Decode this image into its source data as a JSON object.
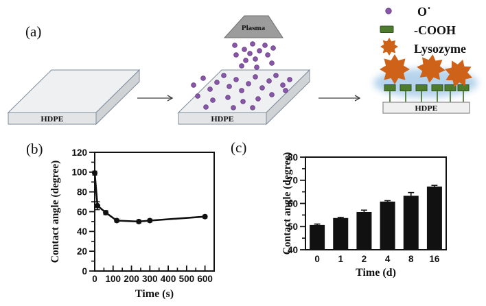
{
  "figure": {
    "panel_a": {
      "label": "(a)",
      "substrate_label": "HDPE",
      "plasma_label": "Plasma",
      "legend": [
        {
          "icon": "oxygen-radical-icon",
          "label": "O˙"
        },
        {
          "icon": "cooh-icon",
          "label": "-COOH"
        },
        {
          "icon": "lysozyme-icon",
          "label": "Lysozyme"
        }
      ]
    },
    "panel_b": {
      "label": "(b)"
    },
    "panel_c": {
      "label": "(c)"
    }
  },
  "theme": {
    "radical_purple": "#8a56a8",
    "radical_purple_dark": "#5e3a80",
    "cooh_green": "#4e7c2e",
    "cooh_green_dark": "#2e5318",
    "lysozyme_orange": "#cd6218",
    "haze_blue": "#a9cce9",
    "plasma_gray": "#9c9c9c",
    "slab_top": "#eef0f1",
    "slab_front": "#e2e4e6",
    "slab_side": "#cfd3d6",
    "slab_stroke": "#7d8b9b",
    "chart_black": "#111111"
  },
  "chart_data": [
    {
      "id": "panel_b",
      "type": "line",
      "x": [
        0,
        15,
        60,
        120,
        240,
        300,
        600
      ],
      "y": [
        99,
        66,
        59,
        51,
        50,
        51,
        55
      ],
      "yerr": [
        2,
        4,
        2,
        1.5,
        1.5,
        1.5,
        1.5
      ],
      "xlabel": "Time (s)",
      "ylabel": "Contact angle (degree)",
      "xlim": [
        0,
        650
      ],
      "ylim": [
        0,
        120
      ],
      "xticks": [
        0,
        100,
        200,
        300,
        400,
        500,
        600
      ],
      "yticks": [
        0,
        20,
        40,
        60,
        80,
        100,
        120
      ],
      "x_minor_step": 50,
      "y_minor_step": 10,
      "grid": false,
      "frame": true,
      "color": "#111111"
    },
    {
      "id": "panel_c",
      "type": "bar",
      "categories": [
        "0",
        "1",
        "2",
        "4",
        "8",
        "16"
      ],
      "values": [
        50.7,
        53.7,
        56.3,
        60.8,
        63.3,
        67.3
      ],
      "errors": [
        0.4,
        0.3,
        0.8,
        0.4,
        1.4,
        0.5
      ],
      "xlabel": "Time (d)",
      "ylabel": "Contact angle (degree)",
      "ylim": [
        40,
        80
      ],
      "yticks": [
        40,
        50,
        60,
        70,
        80
      ],
      "y_minor_step": 5,
      "grid": false,
      "frame": true,
      "bar_color": "#111111"
    }
  ]
}
